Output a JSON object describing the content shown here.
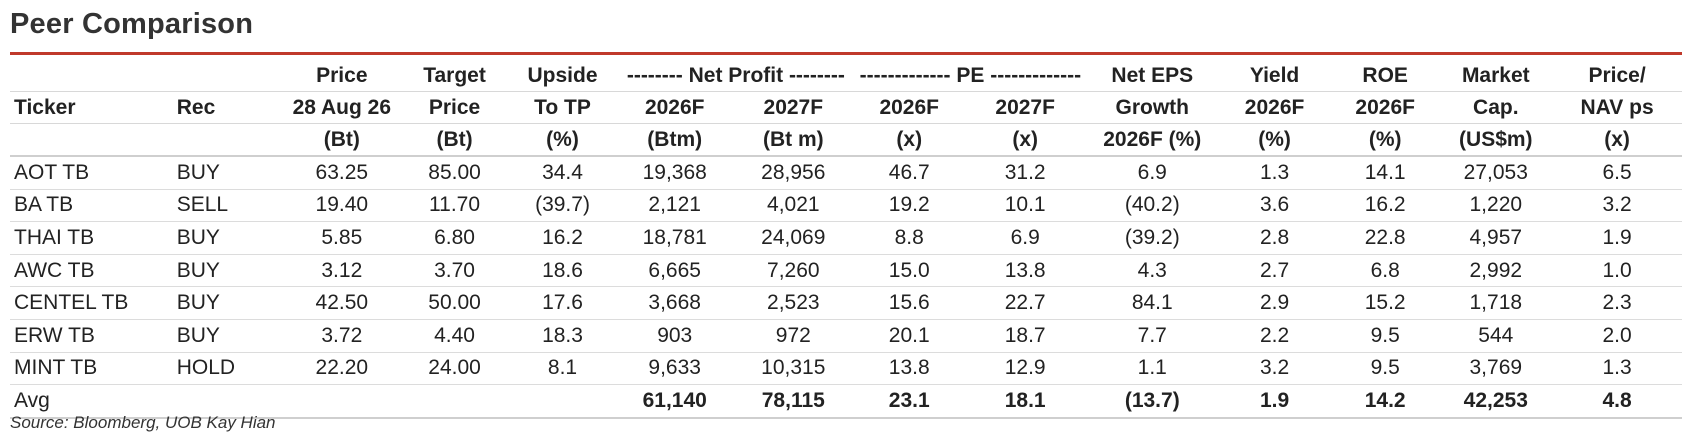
{
  "title": "Peer Comparison",
  "header": {
    "row1": [
      "",
      "",
      "Price",
      "Target",
      "Upside",
      "-------- Net Profit --------",
      "------------- PE -------------",
      "Net EPS",
      "Yield",
      "ROE",
      "Market",
      "Price/"
    ],
    "row2": [
      "Ticker",
      "Rec",
      "28 Aug 26",
      "Price",
      "To TP",
      "2026F",
      "2027F",
      "2026F",
      "2027F",
      "Growth",
      "2026F",
      "2026F",
      "Cap.",
      "NAV ps"
    ],
    "row3": [
      "",
      "",
      "(Bt)",
      "(Bt)",
      "(%)",
      "(Btm)",
      "(Bt m)",
      "(x)",
      "(x)",
      "2026F (%)",
      "(%)",
      "(%)",
      "(US$m)",
      "(x)"
    ]
  },
  "rows": [
    [
      "AOT TB",
      "BUY",
      "63.25",
      "85.00",
      "34.4",
      "19,368",
      "28,956",
      "46.7",
      "31.2",
      "6.9",
      "1.3",
      "14.1",
      "27,053",
      "6.5"
    ],
    [
      "BA TB",
      "SELL",
      "19.40",
      "11.70",
      "(39.7)",
      "2,121",
      "4,021",
      "19.2",
      "10.1",
      "(40.2)",
      "3.6",
      "16.2",
      "1,220",
      "3.2"
    ],
    [
      "THAI TB",
      "BUY",
      "5.85",
      "6.80",
      "16.2",
      "18,781",
      "24,069",
      "8.8",
      "6.9",
      "(39.2)",
      "2.8",
      "22.8",
      "4,957",
      "1.9"
    ],
    [
      "AWC TB",
      "BUY",
      "3.12",
      "3.70",
      "18.6",
      "6,665",
      "7,260",
      "15.0",
      "13.8",
      "4.3",
      "2.7",
      "6.8",
      "2,992",
      "1.0"
    ],
    [
      "CENTEL TB",
      "BUY",
      "42.50",
      "50.00",
      "17.6",
      "3,668",
      "2,523",
      "15.6",
      "22.7",
      "84.1",
      "2.9",
      "15.2",
      "1,718",
      "2.3"
    ],
    [
      "ERW TB",
      "BUY",
      "3.72",
      "4.40",
      "18.3",
      "903",
      "972",
      "20.1",
      "18.7",
      "7.7",
      "2.2",
      "9.5",
      "544",
      "2.0"
    ],
    [
      "MINT TB",
      "HOLD",
      "22.20",
      "24.00",
      "8.1",
      "9,633",
      "10,315",
      "13.8",
      "12.9",
      "1.1",
      "3.2",
      "9.5",
      "3,769",
      "1.3"
    ]
  ],
  "avg": [
    "Avg",
    "",
    "",
    "",
    "",
    "61,140",
    "78,115",
    "23.1",
    "18.1",
    "(13.7)",
    "1.9",
    "14.2",
    "42,253",
    "4.8"
  ],
  "source": "Source: Bloomberg, UOB Kay Hian",
  "colors": {
    "accent_rule": "#c0392b"
  }
}
